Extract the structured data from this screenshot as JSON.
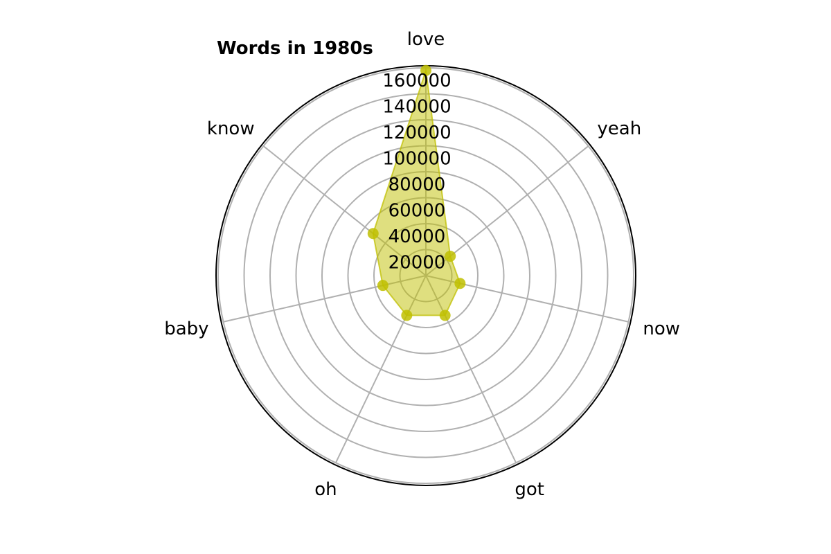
{
  "chart_data": {
    "type": "radar",
    "title": "Words in 1980s",
    "categories": [
      "love",
      "yeah",
      "now",
      "got",
      "oh",
      "baby",
      "know"
    ],
    "values": [
      158000,
      24000,
      27000,
      34000,
      34000,
      34000,
      52000
    ],
    "rmax": 160000,
    "rticks": [
      20000,
      40000,
      60000,
      80000,
      100000,
      120000,
      140000,
      160000
    ],
    "grid": true,
    "series_color": "#bfbf00",
    "fill_color": "#bfbf00",
    "grid_color": "#b0b0b0",
    "frame_color": "#000000"
  }
}
